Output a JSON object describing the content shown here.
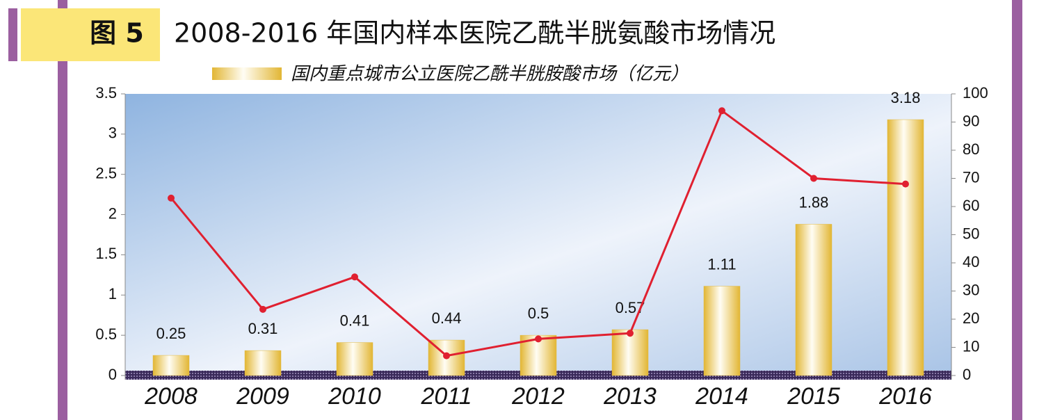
{
  "chart_data": {
    "type": "bar-line",
    "figure_label": "图 5",
    "title": "2008-2016 年国内样本医院乙酰半胱氨酸市场情况",
    "categories": [
      "2008",
      "2009",
      "2010",
      "2011",
      "2012",
      "2013",
      "2014",
      "2015",
      "2016"
    ],
    "series": [
      {
        "name": "国内重点城市公立医院乙酰半胱胺酸市场（亿元）",
        "type": "bar",
        "color": "#e0b840",
        "values": [
          0.25,
          0.31,
          0.41,
          0.44,
          0.5,
          0.57,
          1.11,
          1.88,
          3.18
        ]
      },
      {
        "type": "line",
        "color": "#e02030",
        "axis": "y2",
        "values": [
          63,
          23.5,
          35,
          7,
          13,
          15,
          94,
          70,
          68
        ]
      }
    ],
    "ylim": [
      0,
      3.5
    ],
    "yticks": [
      0,
      0.5,
      1,
      1.5,
      2,
      2.5,
      3,
      3.5
    ],
    "y2lim": [
      0,
      100
    ],
    "y2ticks": [
      0,
      10,
      20,
      30,
      40,
      50,
      60,
      70,
      80,
      90,
      100
    ]
  }
}
